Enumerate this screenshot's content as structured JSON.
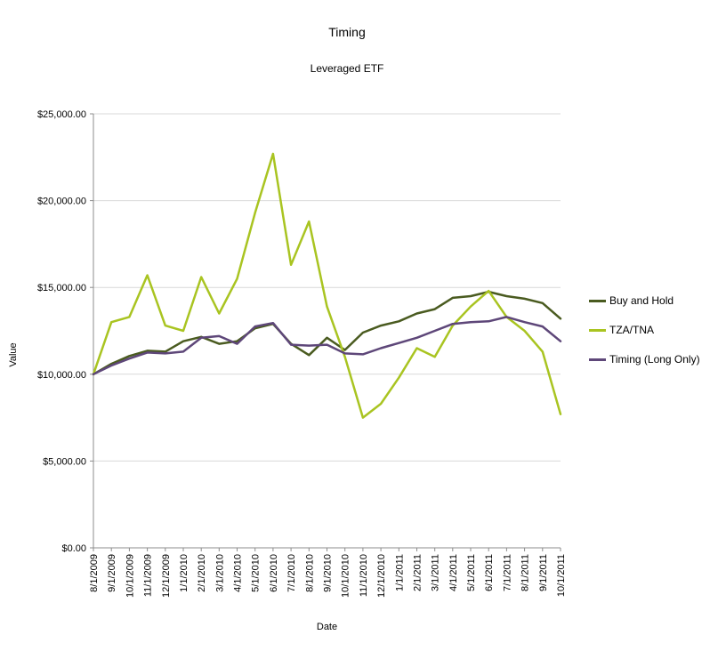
{
  "chart_data": {
    "type": "line",
    "title": "Timing",
    "subtitle": "Leveraged ETF",
    "xlabel": "Date",
    "ylabel": "Value",
    "ylim": [
      0,
      25000
    ],
    "grid": true,
    "legend_position": "right",
    "y_ticks": [
      0,
      5000,
      10000,
      15000,
      20000,
      25000
    ],
    "y_tick_labels": [
      "$0.00",
      "$5,000.00",
      "$10,000.00",
      "$15,000.00",
      "$20,000.00",
      "$25,000.00"
    ],
    "categories": [
      "8/1/2009",
      "9/1/2009",
      "10/1/2009",
      "11/1/2009",
      "12/1/2009",
      "1/1/2010",
      "2/1/2010",
      "3/1/2010",
      "4/1/2010",
      "5/1/2010",
      "6/1/2010",
      "7/1/2010",
      "8/1/2010",
      "9/1/2010",
      "10/1/2010",
      "11/1/2010",
      "12/1/2010",
      "1/1/2011",
      "2/1/2011",
      "3/1/2011",
      "4/1/2011",
      "5/1/2011",
      "6/1/2011",
      "7/1/2011",
      "8/1/2011",
      "9/1/2011",
      "10/1/2011"
    ],
    "series": [
      {
        "name": "Buy and Hold",
        "color": "#4a5b20",
        "values": [
          10000,
          10600,
          11050,
          11350,
          11300,
          11900,
          12150,
          11750,
          11900,
          12650,
          12900,
          11750,
          11100,
          12100,
          11400,
          12400,
          12800,
          13050,
          13500,
          13750,
          14400,
          14500,
          14750,
          14500,
          14350,
          14100,
          13200
        ]
      },
      {
        "name": "TZA/TNA",
        "color": "#a9c421",
        "values": [
          10000,
          13000,
          13300,
          15700,
          12800,
          12500,
          15600,
          13500,
          15500,
          19300,
          22700,
          16300,
          18800,
          13900,
          11000,
          7500,
          8300,
          9800,
          11500,
          11000,
          12800,
          13900,
          14800,
          13300,
          12500,
          11300,
          7700
        ]
      },
      {
        "name": "Timing (Long Only)",
        "color": "#5e4779",
        "values": [
          10000,
          10500,
          10900,
          11250,
          11200,
          11300,
          12100,
          12200,
          11750,
          12750,
          12950,
          11700,
          11650,
          11700,
          11200,
          11150,
          11500,
          11800,
          12100,
          12500,
          12900,
          13000,
          13050,
          13300,
          13000,
          12750,
          11900
        ]
      }
    ]
  },
  "colors": {
    "background": "#ffffff",
    "grid_color": "#d9d9d9",
    "axis_color": "#8c8c8c",
    "text_color": "#000000"
  }
}
